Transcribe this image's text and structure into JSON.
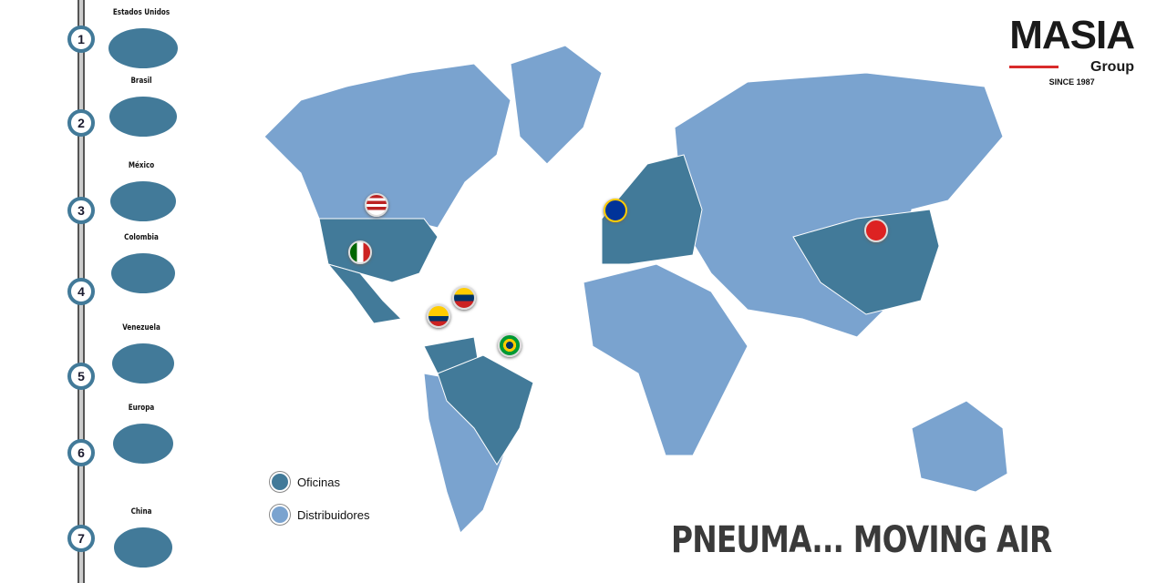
{
  "timeline": [
    {
      "number": "1",
      "label": "Estados Unidos"
    },
    {
      "number": "2",
      "label": "Brasil"
    },
    {
      "number": "3",
      "label": "México"
    },
    {
      "number": "4",
      "label": "Colombia"
    },
    {
      "number": "5",
      "label": "Venezuela"
    },
    {
      "number": "6",
      "label": "Europa"
    },
    {
      "number": "7",
      "label": "China"
    }
  ],
  "logo": {
    "name": "MASIA",
    "sub": "Group",
    "since": "SINCE 1987"
  },
  "legend": [
    {
      "label": "Oficinas",
      "color": "#427a99"
    },
    {
      "label": "Distribuidores",
      "color": "#7aa3cf"
    }
  ],
  "slogan": "PNEUMA... MOVING AIR",
  "colors": {
    "office": "#427a99",
    "distributor": "#7aa3cf",
    "accent": "#d92b2b"
  },
  "pins": [
    "flag-usa",
    "flag-mexico",
    "flag-colombia",
    "flag-venezuela",
    "flag-brazil",
    "flag-eu",
    "flag-china"
  ]
}
